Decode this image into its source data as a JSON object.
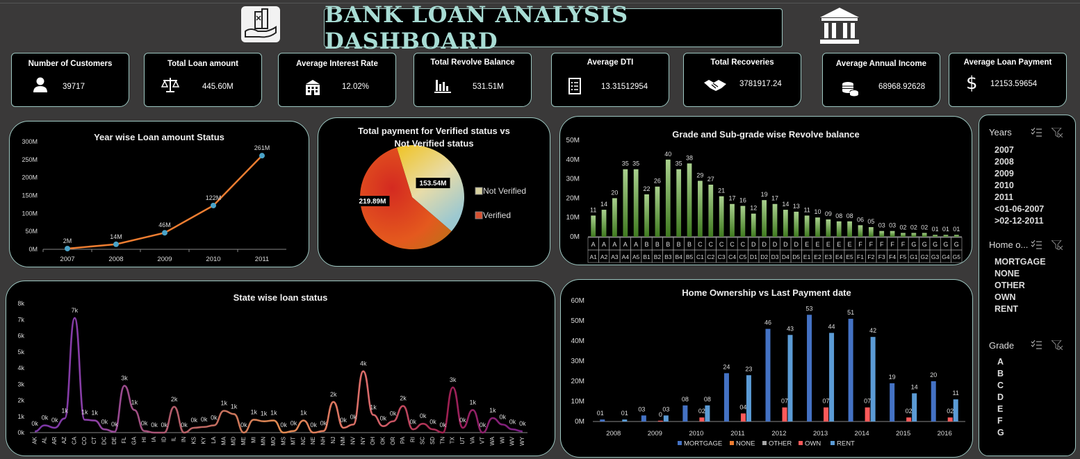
{
  "title": "BANK LOAN ANALYSIS DASHBOARD",
  "kpis": [
    {
      "label": "Number of Customers",
      "value": "39717",
      "icon": "person-icon"
    },
    {
      "label": "Total Loan amount",
      "value": "445.60M",
      "icon": "scales-icon"
    },
    {
      "label": "Average Interest Rate",
      "value": "12.02%",
      "icon": "building-icon"
    },
    {
      "label": "Total Revolve Balance",
      "value": "531.51M",
      "icon": "bar-chart-icon"
    },
    {
      "label": "Average DTI",
      "value": "13.31512954",
      "icon": "document-icon"
    },
    {
      "label": "Total Recoveries",
      "value": "3781917.24",
      "icon": "handshake-icon"
    },
    {
      "label": "Average Annual Income",
      "value": "68968.92628",
      "icon": "coins-icon"
    },
    {
      "label": "Average Loan Payment",
      "value": "12153.59654",
      "icon": "dollar-icon"
    }
  ],
  "slicers": {
    "years": {
      "title": "Years",
      "items": [
        "2007",
        "2008",
        "2009",
        "2010",
        "2011",
        "<01-06-2007",
        ">02-12-2011"
      ]
    },
    "home": {
      "title": "Home o...",
      "items": [
        "MORTGAGE",
        "NONE",
        "OTHER",
        "OWN",
        "RENT"
      ]
    },
    "grade": {
      "title": "Grade",
      "items": [
        "A",
        "B",
        "C",
        "D",
        "E",
        "F",
        "G"
      ]
    }
  },
  "chart_data": [
    {
      "type": "line",
      "title": "Year wise Loan amount Status",
      "categories": [
        "2007",
        "2008",
        "2009",
        "2010",
        "2011"
      ],
      "values": [
        2,
        14,
        46,
        122,
        261
      ],
      "labels": [
        "2M",
        "14M",
        "46M",
        "122M",
        "261M"
      ],
      "yticks": [
        "0M",
        "50M",
        "100M",
        "150M",
        "200M",
        "250M",
        "300M"
      ],
      "ylim": [
        0,
        300
      ],
      "color": "#ed7d31",
      "marker_color": "#4aa3c8"
    },
    {
      "type": "pie",
      "title": "Total payment for Verified status vs Not Verified status",
      "slices": [
        {
          "name": "Not Verified",
          "value": 153.54,
          "label": "153.54M"
        },
        {
          "name": "Verified",
          "value": 219.89,
          "label": "219.89M"
        }
      ]
    },
    {
      "type": "bar",
      "title": "Grade and Sub-grade wise Revolve balance",
      "categories": [
        "A1",
        "A2",
        "A3",
        "A4",
        "A5",
        "B1",
        "B2",
        "B3",
        "B4",
        "B5",
        "C1",
        "C2",
        "C3",
        "C4",
        "C5",
        "D1",
        "D2",
        "D3",
        "D4",
        "D5",
        "E1",
        "E2",
        "E3",
        "E4",
        "E5",
        "F1",
        "F2",
        "F3",
        "F4",
        "F5",
        "G1",
        "G2",
        "G3",
        "G4",
        "G5"
      ],
      "groups": [
        "A",
        "A",
        "A",
        "A",
        "A",
        "B",
        "B",
        "B",
        "B",
        "B",
        "C",
        "C",
        "C",
        "C",
        "C",
        "D",
        "D",
        "D",
        "D",
        "D",
        "E",
        "E",
        "E",
        "E",
        "E",
        "F",
        "F",
        "F",
        "F",
        "F",
        "G",
        "G",
        "G",
        "G",
        "G"
      ],
      "values": [
        11,
        14,
        20,
        35,
        35,
        22,
        26,
        40,
        35,
        38,
        29,
        27,
        21,
        17,
        16,
        12,
        19,
        17,
        14,
        13,
        11,
        10,
        9,
        8,
        8,
        6,
        5,
        3,
        3,
        2,
        2,
        2,
        1,
        1,
        1
      ],
      "labels": [
        "11",
        "14",
        "20",
        "35",
        "35",
        "22",
        "26",
        "40",
        "35",
        "38",
        "29",
        "27",
        "21",
        "17",
        "16",
        "12",
        "19",
        "17",
        "14",
        "13",
        "11",
        "10",
        "09",
        "08",
        "08",
        "06",
        "05",
        "03",
        "03",
        "02",
        "02",
        "02",
        "01",
        "01",
        "01"
      ],
      "yticks": [
        "0M",
        "10M",
        "20M",
        "30M",
        "40M",
        "50M"
      ],
      "ylim": [
        0,
        50
      ],
      "color": "#70ad47"
    },
    {
      "type": "line",
      "title": "State wise loan status",
      "categories": [
        "AK",
        "AL",
        "AR",
        "AZ",
        "CA",
        "CO",
        "CT",
        "DC",
        "DE",
        "FL",
        "GA",
        "HI",
        "IA",
        "ID",
        "IL",
        "IN",
        "KS",
        "KY",
        "LA",
        "MA",
        "MD",
        "ME",
        "MI",
        "MN",
        "MO",
        "MS",
        "MT",
        "NC",
        "NE",
        "NH",
        "NJ",
        "NM",
        "NV",
        "NY",
        "OH",
        "OK",
        "OR",
        "PA",
        "RI",
        "SC",
        "SD",
        "TN",
        "TX",
        "UT",
        "VA",
        "VT",
        "WA",
        "WI",
        "WV",
        "WY"
      ],
      "values": [
        0.08,
        0.45,
        0.3,
        0.88,
        7.1,
        0.8,
        0.75,
        0.2,
        0.05,
        2.9,
        1.4,
        0.1,
        0.0,
        0.0,
        1.6,
        0.0,
        0.3,
        0.35,
        0.45,
        1.35,
        1.15,
        0.0,
        0.8,
        0.7,
        0.75,
        0.0,
        0.1,
        0.75,
        0.0,
        0.1,
        1.9,
        0.3,
        0.5,
        3.8,
        1.1,
        0.4,
        0.7,
        1.65,
        0.2,
        0.55,
        0.2,
        0.0,
        2.8,
        0.3,
        1.4,
        0.0,
        0.9,
        0.5,
        0.2,
        0.08
      ],
      "labels": [
        "0k",
        "0k",
        "0k",
        "1k",
        "7k",
        "1k",
        "1k",
        "0k",
        "0k",
        "3k",
        "1k",
        "0k",
        "0k",
        "0k",
        "2k",
        "0k",
        "0k",
        "0k",
        "0k",
        "1k",
        "1k",
        "0k",
        "1k",
        "1k",
        "1k",
        "0k",
        "0k",
        "1k",
        "0k",
        "0k",
        "2k",
        "0k",
        "0k",
        "4k",
        "1k",
        "0k",
        "0k",
        "2k",
        "0k",
        "0k",
        "0k",
        "0k",
        "3k",
        "0k",
        "1k",
        "0k",
        "1k",
        "0k",
        "0k",
        "0k"
      ],
      "yticks": [
        "0k",
        "1k",
        "2k",
        "3k",
        "4k",
        "5k",
        "6k",
        "7k",
        "8k"
      ],
      "ylim": [
        0,
        8
      ]
    },
    {
      "type": "bar",
      "title": "Home Ownership vs Last Payment date",
      "categories": [
        "2008",
        "2009",
        "2010",
        "2011",
        "2012",
        "2013",
        "2014",
        "2015",
        "2016"
      ],
      "series": [
        {
          "name": "MORTGAGE",
          "color": "#4472c4",
          "values": [
            1,
            3,
            8,
            24,
            46,
            53,
            51,
            19,
            20
          ],
          "labels": [
            "01",
            "03",
            "08",
            "24",
            "46",
            "53",
            "51",
            "19",
            "20"
          ]
        },
        {
          "name": "NONE",
          "color": "#ed7d31",
          "values": [
            0,
            0,
            0,
            0,
            0,
            0,
            0,
            0,
            0
          ],
          "labels": [
            "",
            "",
            "",
            "",
            "",
            "",
            "",
            "",
            ""
          ]
        },
        {
          "name": "OTHER",
          "color": "#a5a5a5",
          "values": [
            0,
            0,
            0,
            0,
            0,
            0,
            0,
            0,
            0
          ],
          "labels": [
            "",
            "",
            "",
            "",
            "",
            "",
            "",
            "",
            ""
          ]
        },
        {
          "name": "OWN",
          "color": "#ff5a5a",
          "values": [
            0,
            0.4,
            2,
            4,
            7,
            7,
            7,
            2,
            2
          ],
          "labels": [
            "",
            "0",
            "02",
            "04",
            "07",
            "07",
            "07",
            "02",
            "02"
          ]
        },
        {
          "name": "RENT",
          "color": "#5b9bd5",
          "values": [
            1,
            3,
            8,
            23,
            43,
            44,
            42,
            14,
            11
          ],
          "labels": [
            "01",
            "03",
            "08",
            "23",
            "43",
            "44",
            "42",
            "14",
            "11"
          ]
        }
      ],
      "yticks": [
        "0M",
        "10M",
        "20M",
        "30M",
        "40M",
        "50M",
        "60M"
      ],
      "ylim": [
        0,
        60
      ]
    }
  ]
}
